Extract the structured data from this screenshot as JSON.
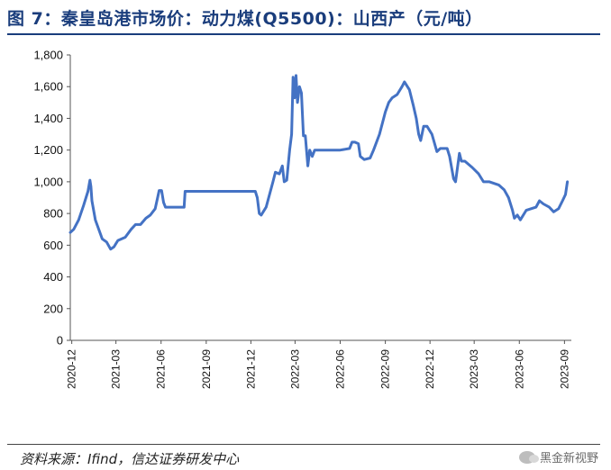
{
  "figure": {
    "title": "图 7：秦皇岛港市场价：动力煤(Q5500)：山西产（元/吨）",
    "source": "资料来源：Ifind，信达证券研发中心",
    "watermark": "黑金新视野",
    "watermark_icon": "wechat-icon"
  },
  "chart_data": {
    "type": "line",
    "title": "图 7：秦皇岛港市场价：动力煤(Q5500)：山西产（元/吨）",
    "xlabel": "",
    "ylabel": "",
    "ylim": [
      0,
      1800
    ],
    "yticks": [
      0,
      200,
      400,
      600,
      800,
      1000,
      1200,
      1400,
      1600,
      1800
    ],
    "ytick_labels": [
      "0",
      "200",
      "400",
      "600",
      "800",
      "1,000",
      "1,200",
      "1,400",
      "1,600",
      "1,800"
    ],
    "xlim": [
      "2020-11-28",
      "2023-09-15"
    ],
    "xticks": [
      "2020-12-01",
      "2021-03-01",
      "2021-06-01",
      "2021-09-01",
      "2021-12-01",
      "2022-03-01",
      "2022-06-01",
      "2022-09-01",
      "2022-12-01",
      "2023-03-01",
      "2023-06-01",
      "2023-09-01"
    ],
    "xtick_labels": [
      "2020-12",
      "2021-03",
      "2021-06",
      "2021-09",
      "2021-12",
      "2022-03",
      "2022-06",
      "2022-09",
      "2022-12",
      "2023-03",
      "2023-06",
      "2023-09"
    ],
    "grid": false,
    "legend": "none",
    "colors": {
      "line": "#4472c4"
    },
    "series": [
      {
        "name": "",
        "points": [
          [
            "2020-11-28",
            680
          ],
          [
            "2020-12-05",
            700
          ],
          [
            "2020-12-15",
            760
          ],
          [
            "2020-12-25",
            850
          ],
          [
            "2021-01-03",
            940
          ],
          [
            "2021-01-07",
            1010
          ],
          [
            "2021-01-09",
            970
          ],
          [
            "2021-01-11",
            880
          ],
          [
            "2021-01-18",
            760
          ],
          [
            "2021-01-25",
            700
          ],
          [
            "2021-02-01",
            640
          ],
          [
            "2021-02-10",
            620
          ],
          [
            "2021-02-18",
            575
          ],
          [
            "2021-02-25",
            590
          ],
          [
            "2021-03-05",
            630
          ],
          [
            "2021-03-20",
            650
          ],
          [
            "2021-04-01",
            700
          ],
          [
            "2021-04-10",
            730
          ],
          [
            "2021-04-20",
            730
          ],
          [
            "2021-05-01",
            770
          ],
          [
            "2021-05-10",
            790
          ],
          [
            "2021-05-20",
            830
          ],
          [
            "2021-05-25",
            900
          ],
          [
            "2021-05-28",
            945
          ],
          [
            "2021-06-02",
            945
          ],
          [
            "2021-06-06",
            870
          ],
          [
            "2021-06-10",
            840
          ],
          [
            "2021-07-01",
            840
          ],
          [
            "2021-07-18",
            840
          ],
          [
            "2021-07-20",
            940
          ],
          [
            "2021-09-01",
            940
          ],
          [
            "2021-10-15",
            940
          ],
          [
            "2021-12-10",
            940
          ],
          [
            "2021-12-14",
            900
          ],
          [
            "2021-12-18",
            800
          ],
          [
            "2021-12-22",
            790
          ],
          [
            "2022-01-01",
            840
          ],
          [
            "2022-01-15",
            1000
          ],
          [
            "2022-01-20",
            1060
          ],
          [
            "2022-01-28",
            1050
          ],
          [
            "2022-02-03",
            1100
          ],
          [
            "2022-02-07",
            1000
          ],
          [
            "2022-02-12",
            1010
          ],
          [
            "2022-02-18",
            1200
          ],
          [
            "2022-02-22",
            1300
          ],
          [
            "2022-02-25",
            1660
          ],
          [
            "2022-02-28",
            1530
          ],
          [
            "2022-03-03",
            1670
          ],
          [
            "2022-03-06",
            1500
          ],
          [
            "2022-03-10",
            1600
          ],
          [
            "2022-03-14",
            1560
          ],
          [
            "2022-03-18",
            1290
          ],
          [
            "2022-03-22",
            1290
          ],
          [
            "2022-03-27",
            1100
          ],
          [
            "2022-03-31",
            1200
          ],
          [
            "2022-04-05",
            1160
          ],
          [
            "2022-04-10",
            1200
          ],
          [
            "2022-05-01",
            1200
          ],
          [
            "2022-06-01",
            1200
          ],
          [
            "2022-06-20",
            1210
          ],
          [
            "2022-06-25",
            1250
          ],
          [
            "2022-07-01",
            1250
          ],
          [
            "2022-07-08",
            1240
          ],
          [
            "2022-07-12",
            1160
          ],
          [
            "2022-07-20",
            1140
          ],
          [
            "2022-08-01",
            1150
          ],
          [
            "2022-08-08",
            1200
          ],
          [
            "2022-08-20",
            1300
          ],
          [
            "2022-09-01",
            1440
          ],
          [
            "2022-09-08",
            1500
          ],
          [
            "2022-09-15",
            1530
          ],
          [
            "2022-09-25",
            1550
          ],
          [
            "2022-10-05",
            1600
          ],
          [
            "2022-10-10",
            1630
          ],
          [
            "2022-10-20",
            1580
          ],
          [
            "2022-10-28",
            1480
          ],
          [
            "2022-11-03",
            1400
          ],
          [
            "2022-11-08",
            1300
          ],
          [
            "2022-11-12",
            1260
          ],
          [
            "2022-11-18",
            1350
          ],
          [
            "2022-11-25",
            1350
          ],
          [
            "2022-12-05",
            1300
          ],
          [
            "2022-12-15",
            1190
          ],
          [
            "2022-12-22",
            1210
          ],
          [
            "2023-01-05",
            1210
          ],
          [
            "2023-01-10",
            1160
          ],
          [
            "2023-01-18",
            1020
          ],
          [
            "2023-01-22",
            1000
          ],
          [
            "2023-01-30",
            1180
          ],
          [
            "2023-02-03",
            1130
          ],
          [
            "2023-02-10",
            1130
          ],
          [
            "2023-02-25",
            1090
          ],
          [
            "2023-03-10",
            1050
          ],
          [
            "2023-03-20",
            1000
          ],
          [
            "2023-04-01",
            1000
          ],
          [
            "2023-04-20",
            980
          ],
          [
            "2023-05-01",
            950
          ],
          [
            "2023-05-10",
            900
          ],
          [
            "2023-05-18",
            820
          ],
          [
            "2023-05-22",
            770
          ],
          [
            "2023-05-28",
            790
          ],
          [
            "2023-06-03",
            760
          ],
          [
            "2023-06-15",
            820
          ],
          [
            "2023-06-25",
            830
          ],
          [
            "2023-07-05",
            840
          ],
          [
            "2023-07-12",
            880
          ],
          [
            "2023-07-20",
            860
          ],
          [
            "2023-08-01",
            840
          ],
          [
            "2023-08-10",
            810
          ],
          [
            "2023-08-20",
            830
          ],
          [
            "2023-08-28",
            880
          ],
          [
            "2023-09-03",
            920
          ],
          [
            "2023-09-07",
            1000
          ]
        ]
      }
    ]
  }
}
